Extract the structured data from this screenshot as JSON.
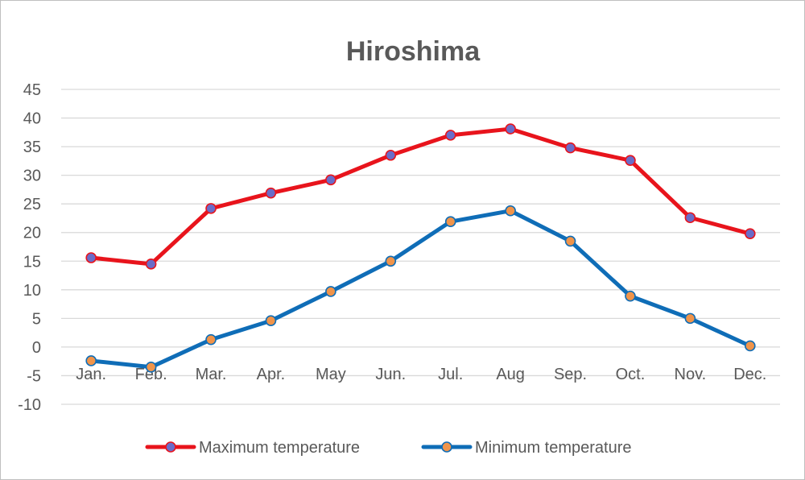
{
  "chart_data": {
    "type": "line",
    "title": "Hiroshima",
    "xlabel": "",
    "ylabel": "",
    "categories": [
      "Jan.",
      "Feb.",
      "Mar.",
      "Apr.",
      "May",
      "Jun.",
      "Jul.",
      "Aug",
      "Sep.",
      "Oct.",
      "Nov.",
      "Dec."
    ],
    "ylim": [
      -10,
      45
    ],
    "yticks": [
      -10,
      -5,
      0,
      5,
      10,
      15,
      20,
      25,
      30,
      35,
      40,
      45
    ],
    "grid": true,
    "legend_position": "bottom",
    "series": [
      {
        "name": "Maximum temperature",
        "values": [
          15.6,
          14.5,
          24.2,
          26.9,
          29.2,
          33.5,
          37.0,
          38.1,
          34.8,
          32.6,
          22.6,
          19.8
        ],
        "line_color": "#e8141c",
        "marker_color": "#6a6cc8"
      },
      {
        "name": "Minimum temperature",
        "values": [
          -2.4,
          -3.5,
          1.3,
          4.6,
          9.7,
          15.0,
          21.9,
          23.8,
          18.5,
          8.9,
          5.0,
          0.2
        ],
        "line_color": "#0f6db7",
        "marker_color": "#f0944a"
      }
    ]
  }
}
